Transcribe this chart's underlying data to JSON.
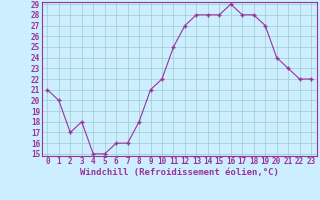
{
  "x": [
    0,
    1,
    2,
    3,
    4,
    5,
    6,
    7,
    8,
    9,
    10,
    11,
    12,
    13,
    14,
    15,
    16,
    17,
    18,
    19,
    20,
    21,
    22,
    23
  ],
  "y": [
    21,
    20,
    17,
    18,
    15,
    15,
    16,
    16,
    18,
    21,
    22,
    25,
    27,
    28,
    28,
    28,
    29,
    28,
    28,
    27,
    24,
    23,
    22,
    22
  ],
  "line_color": "#993399",
  "marker": "+",
  "marker_size": 3.5,
  "marker_edge_width": 1.0,
  "line_width": 0.8,
  "bg_color": "#cceeff",
  "grid_color": "#99cccc",
  "axis_color": "#993399",
  "xlabel": "Windchill (Refroidissement éolien,°C)",
  "ylim": [
    15,
    29
  ],
  "xlim": [
    -0.5,
    23.5
  ],
  "yticks": [
    15,
    16,
    17,
    18,
    19,
    20,
    21,
    22,
    23,
    24,
    25,
    26,
    27,
    28,
    29
  ],
  "xticks": [
    0,
    1,
    2,
    3,
    4,
    5,
    6,
    7,
    8,
    9,
    10,
    11,
    12,
    13,
    14,
    15,
    16,
    17,
    18,
    19,
    20,
    21,
    22,
    23
  ],
  "tick_fontsize": 5.5,
  "label_fontsize": 6.5
}
